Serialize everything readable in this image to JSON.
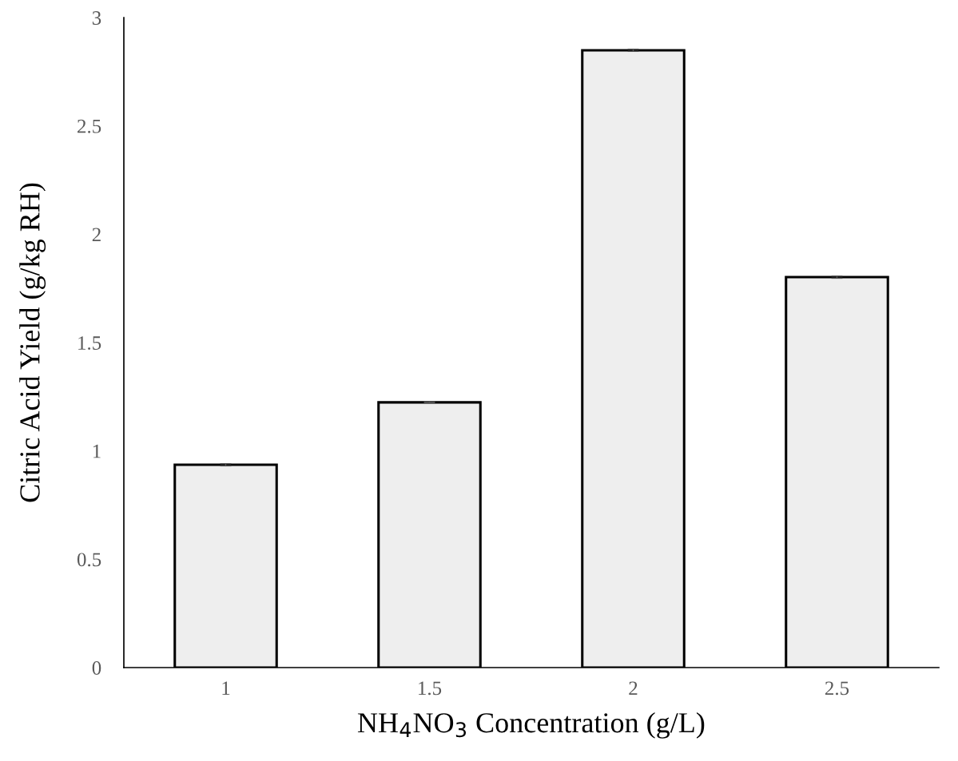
{
  "chart_data": {
    "type": "bar",
    "categories": [
      "1",
      "1.5",
      "2",
      "2.5"
    ],
    "values": [
      0.936,
      1.224,
      2.849,
      1.802
    ],
    "errors": [
      0.005,
      0.003,
      0.005,
      0.005
    ],
    "color": "#eeeeee",
    "xlabel": "NH$_{4}$NO$_{3}$ Concentration (g/L)",
    "ylabel": "Citric Acid Yield (g/kg RH)",
    "ylim": [
      0,
      3
    ],
    "yticks": [
      0,
      0.5,
      1,
      1.5,
      2,
      2.5,
      3
    ],
    "grid": false
  }
}
